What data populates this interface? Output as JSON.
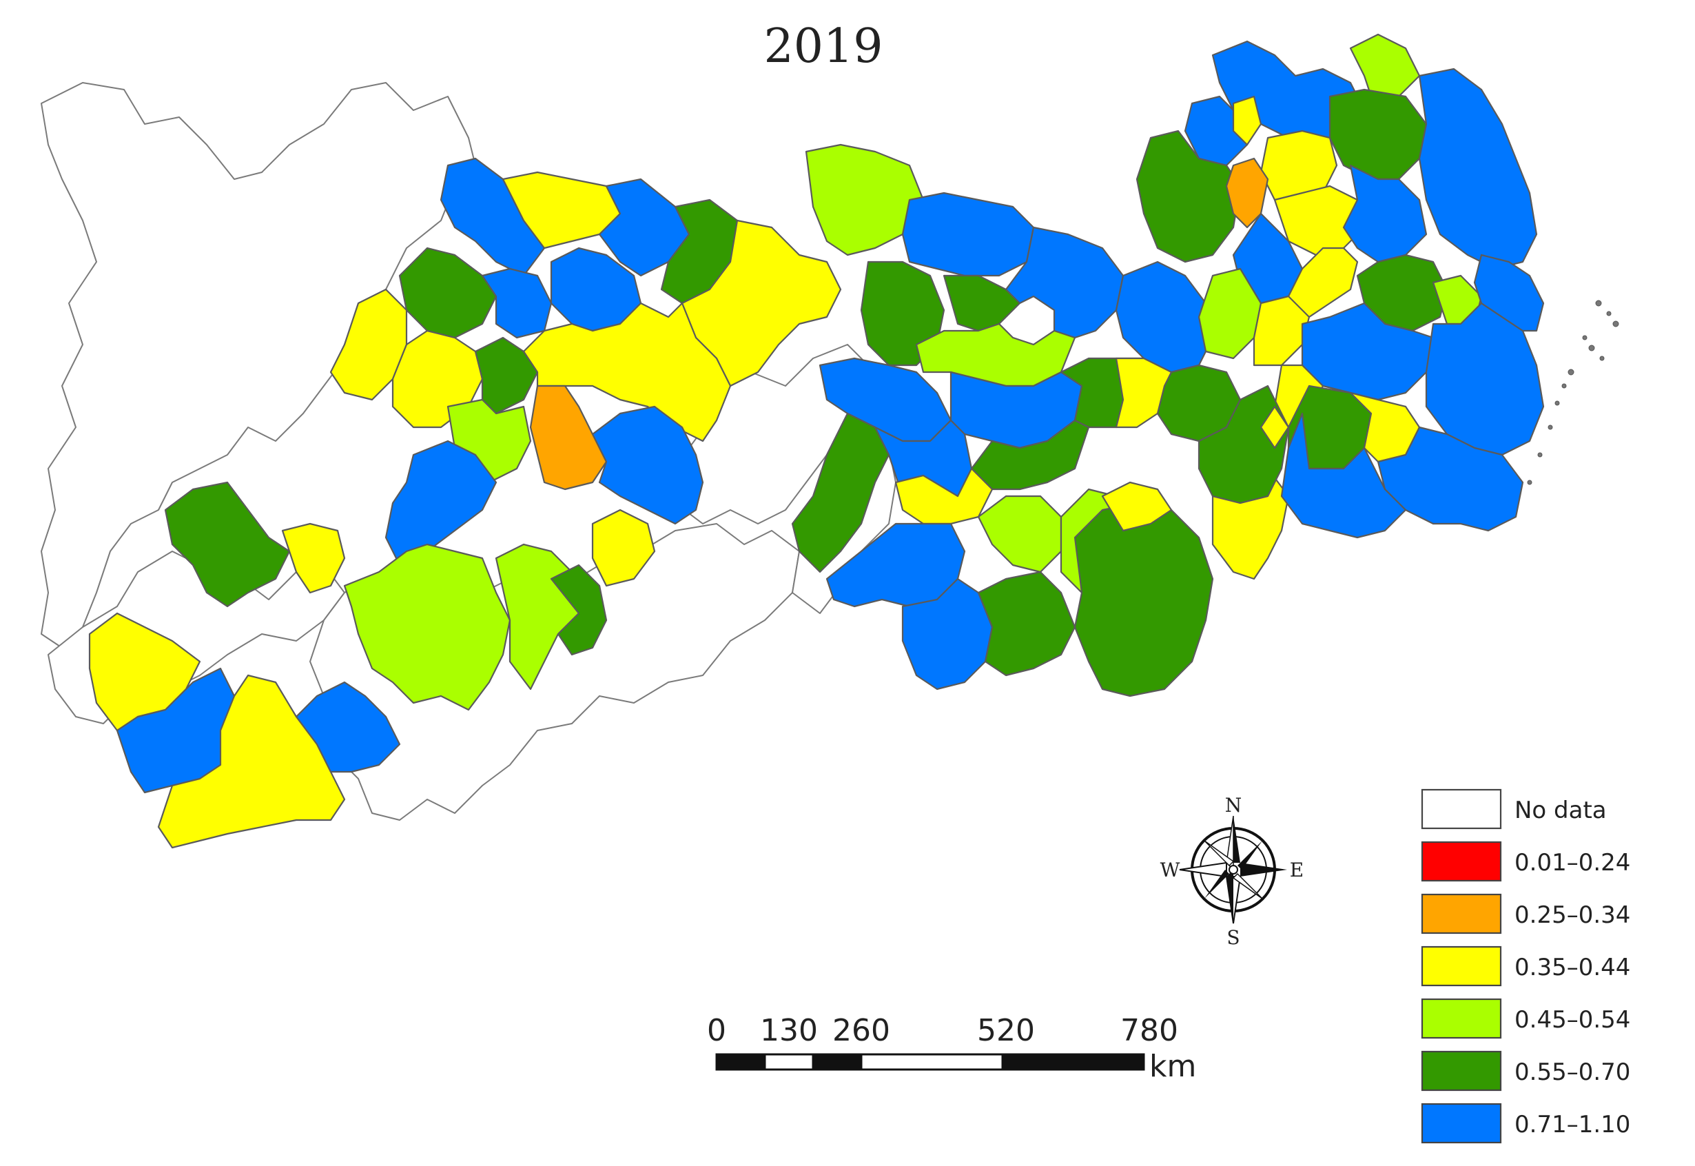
{
  "title": "2019",
  "colors": {
    "nodata": "#ffffff",
    "c1": "#ff0000",
    "c2": "#ffa500",
    "c3": "#ffff00",
    "c4": "#aaff00",
    "c5": "#339900",
    "c6": "#0077ff"
  },
  "legend": [
    {
      "label": "No data",
      "color": "#ffffff"
    },
    {
      "label": "0.01–0.24",
      "color": "#ff0000"
    },
    {
      "label": "0.25–0.34",
      "color": "#ffa500"
    },
    {
      "label": "0.35–0.44",
      "color": "#ffff00"
    },
    {
      "label": "0.45–0.54",
      "color": "#aaff00"
    },
    {
      "label": "0.55–0.70",
      "color": "#339900"
    },
    {
      "label": "0.71–1.10",
      "color": "#0077ff"
    }
  ],
  "scale_bar": {
    "ticks": [
      "0",
      "130",
      "260",
      "520",
      "780"
    ],
    "unit": "km"
  },
  "compass": {
    "n": "N",
    "s": "S",
    "e": "E",
    "w": "W"
  }
}
